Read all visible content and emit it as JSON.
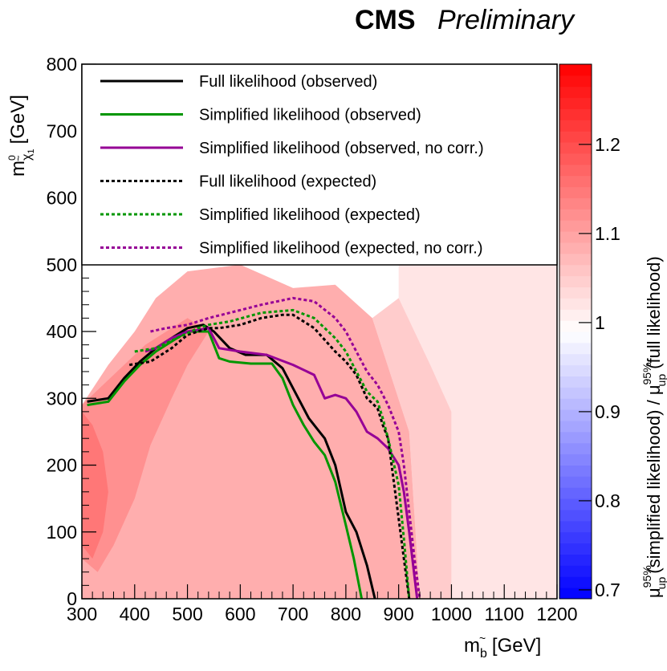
{
  "header": {
    "bold": "CMS",
    "italic": "Preliminary"
  },
  "chart_data": {
    "type": "heatmap",
    "xlabel": {
      "main": "m",
      "sub": "b",
      "accent": "~",
      "unit": "[GeV]"
    },
    "ylabel": {
      "main": "m",
      "sub": "χ",
      "subsub": "1",
      "sup": "0",
      "accent": "~",
      "unit": "[GeV]"
    },
    "zlabel": {
      "mu": "μ",
      "sup": "95%",
      "sub": "up",
      "num": "(simplified likelihood) / ",
      "den": "(full likelihood)"
    },
    "xlim": [
      300,
      1200
    ],
    "ylim": [
      0,
      800
    ],
    "zlim": [
      0.69,
      1.29
    ],
    "xticks": [
      "300",
      "400",
      "500",
      "600",
      "700",
      "800",
      "900",
      "1000",
      "1100",
      "1200"
    ],
    "yticks": [
      "0",
      "100",
      "200",
      "300",
      "400",
      "500",
      "600",
      "700",
      "800"
    ],
    "zticks": [
      "0.7",
      "0.8",
      "0.9",
      "1",
      "1.1",
      "1.2"
    ],
    "colormap": {
      "low": "#0000ff",
      "mid": "#ffffff",
      "high": "#ff0000"
    },
    "heatmap_regions": [
      {
        "name": "far-right",
        "z": 1.02,
        "polygon": [
          [
            1000,
            0
          ],
          [
            1200,
            0
          ],
          [
            1200,
            500
          ],
          [
            900,
            500
          ],
          [
            900,
            450
          ],
          [
            960,
            350
          ],
          [
            1000,
            280
          ]
        ]
      },
      {
        "name": "right-band",
        "z": 1.05,
        "polygon": [
          [
            940,
            0
          ],
          [
            1000,
            0
          ],
          [
            1000,
            280
          ],
          [
            960,
            350
          ],
          [
            900,
            450
          ],
          [
            850,
            420
          ],
          [
            920,
            250
          ]
        ]
      },
      {
        "name": "center",
        "z": 1.085,
        "polygon": [
          [
            300,
            0
          ],
          [
            940,
            0
          ],
          [
            920,
            250
          ],
          [
            850,
            420
          ],
          [
            780,
            470
          ],
          [
            700,
            465
          ],
          [
            600,
            500
          ],
          [
            500,
            490
          ],
          [
            440,
            450
          ],
          [
            400,
            400
          ],
          [
            350,
            350
          ],
          [
            300,
            290
          ]
        ]
      },
      {
        "name": "left-strong",
        "z": 1.12,
        "polygon": [
          [
            300,
            60
          ],
          [
            330,
            40
          ],
          [
            360,
            80
          ],
          [
            400,
            150
          ],
          [
            430,
            230
          ],
          [
            470,
            300
          ],
          [
            500,
            350
          ],
          [
            540,
            400
          ],
          [
            500,
            420
          ],
          [
            460,
            400
          ],
          [
            420,
            380
          ],
          [
            380,
            350
          ],
          [
            340,
            320
          ],
          [
            300,
            290
          ]
        ]
      },
      {
        "name": "left-edge",
        "z": 1.15,
        "polygon": [
          [
            300,
            80
          ],
          [
            320,
            60
          ],
          [
            340,
            100
          ],
          [
            350,
            160
          ],
          [
            340,
            220
          ],
          [
            320,
            260
          ],
          [
            300,
            280
          ]
        ]
      }
    ],
    "series": [
      {
        "name": "Full likelihood (observed)",
        "color": "#000000",
        "dash": "solid",
        "x": [
          310,
          350,
          380,
          410,
          440,
          470,
          500,
          530,
          550,
          580,
          610,
          650,
          680,
          710,
          730,
          750,
          760,
          780,
          790,
          800,
          820,
          840,
          855
        ],
        "y": [
          295,
          300,
          330,
          355,
          375,
          390,
          405,
          410,
          400,
          375,
          365,
          365,
          345,
          300,
          270,
          250,
          240,
          200,
          165,
          130,
          100,
          50,
          0
        ]
      },
      {
        "name": "Simplified likelihood (observed)",
        "color": "#009600",
        "dash": "solid",
        "x": [
          310,
          350,
          380,
          410,
          440,
          470,
          500,
          540,
          560,
          580,
          620,
          660,
          680,
          700,
          720,
          740,
          760,
          780,
          800,
          815,
          830
        ],
        "y": [
          290,
          295,
          325,
          350,
          370,
          385,
          400,
          400,
          360,
          355,
          352,
          352,
          330,
          290,
          260,
          235,
          215,
          175,
          110,
          60,
          0
        ]
      },
      {
        "name": "Simplified likelihood (observed, no corr.)",
        "color": "#960096",
        "dash": "solid",
        "x": [
          420,
          440,
          470,
          500,
          540,
          560,
          600,
          650,
          700,
          740,
          760,
          780,
          800,
          820,
          840,
          860,
          880,
          900,
          910,
          920,
          935
        ],
        "y": [
          370,
          375,
          390,
          400,
          405,
          375,
          370,
          365,
          350,
          335,
          300,
          305,
          300,
          280,
          250,
          240,
          225,
          200,
          160,
          100,
          0
        ]
      },
      {
        "name": "Full likelihood (expected)",
        "color": "#000000",
        "dash": "dotted",
        "x": [
          390,
          430,
          470,
          500,
          540,
          560,
          600,
          640,
          680,
          700,
          740,
          780,
          800,
          820,
          840,
          860,
          870,
          880,
          890,
          900,
          910,
          920
        ],
        "y": [
          350,
          355,
          375,
          395,
          405,
          405,
          410,
          420,
          425,
          425,
          405,
          370,
          355,
          335,
          300,
          285,
          260,
          240,
          180,
          120,
          60,
          0
        ]
      },
      {
        "name": "Simplified likelihood (expected)",
        "color": "#009600",
        "dash": "dotted",
        "x": [
          400,
          440,
          480,
          520,
          540,
          580,
          640,
          700,
          740,
          780,
          800,
          820,
          840,
          860,
          870,
          880,
          900,
          910,
          920
        ],
        "y": [
          370,
          375,
          390,
          405,
          410,
          415,
          428,
          432,
          420,
          390,
          370,
          340,
          310,
          295,
          270,
          240,
          170,
          90,
          0
        ]
      },
      {
        "name": "Simplified likelihood (expected, no corr.)",
        "color": "#960096",
        "dash": "dotted",
        "x": [
          430,
          460,
          500,
          540,
          580,
          640,
          700,
          740,
          780,
          800,
          820,
          840,
          860,
          880,
          900,
          910,
          920,
          930,
          940
        ],
        "y": [
          400,
          405,
          410,
          420,
          428,
          440,
          450,
          445,
          420,
          400,
          370,
          340,
          320,
          290,
          250,
          200,
          130,
          60,
          0
        ]
      }
    ],
    "legend_placement": "top-left, inside plot"
  }
}
